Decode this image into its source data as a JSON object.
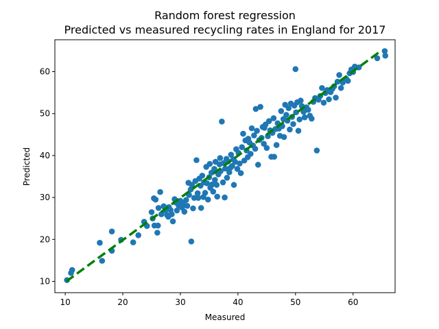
{
  "chart_data": {
    "type": "scatter",
    "title": "Random forest regression",
    "subtitle": "Predicted vs measured recycling rates in England for 2017",
    "xlabel": "Measured",
    "ylabel": "Predicted",
    "xlim": [
      8.2,
      67.3
    ],
    "ylim": [
      7.3,
      67.6
    ],
    "xticks": [
      10,
      20,
      30,
      40,
      50,
      60
    ],
    "yticks": [
      10,
      20,
      30,
      40,
      50,
      60
    ],
    "grid": false,
    "legend": "none",
    "colors": {
      "points": "#1f77b4",
      "fit_line": "#008000"
    },
    "fit_line": {
      "style": "dashed",
      "x": [
        10.2,
        64.5
      ],
      "y": [
        10.0,
        64.6
      ]
    },
    "points": [
      [
        10.3,
        10.3
      ],
      [
        11.0,
        12.0
      ],
      [
        11.2,
        12.7
      ],
      [
        16.0,
        19.2
      ],
      [
        16.4,
        14.9
      ],
      [
        18.1,
        17.3
      ],
      [
        18.1,
        21.9
      ],
      [
        19.7,
        19.9
      ],
      [
        21.8,
        19.3
      ],
      [
        22.7,
        21.0
      ],
      [
        23.7,
        24.2
      ],
      [
        24.2,
        23.2
      ],
      [
        25.0,
        26.5
      ],
      [
        25.2,
        25.0
      ],
      [
        25.4,
        29.8
      ],
      [
        25.5,
        23.3
      ],
      [
        25.7,
        29.5
      ],
      [
        26.0,
        21.6
      ],
      [
        26.1,
        23.3
      ],
      [
        26.2,
        27.5
      ],
      [
        26.5,
        31.3
      ],
      [
        26.7,
        26.0
      ],
      [
        27.1,
        27.9
      ],
      [
        27.4,
        26.9
      ],
      [
        27.7,
        25.8
      ],
      [
        27.9,
        25.4
      ],
      [
        28.0,
        27.7
      ],
      [
        28.3,
        27.0
      ],
      [
        28.5,
        26.0
      ],
      [
        28.7,
        24.3
      ],
      [
        29.0,
        29.6
      ],
      [
        29.2,
        28.8
      ],
      [
        29.4,
        26.9
      ],
      [
        29.7,
        28.1
      ],
      [
        30.0,
        29.2
      ],
      [
        30.3,
        27.6
      ],
      [
        30.5,
        28.6
      ],
      [
        30.7,
        26.6
      ],
      [
        31.0,
        29.4
      ],
      [
        31.2,
        28.0
      ],
      [
        31.4,
        33.5
      ],
      [
        31.5,
        30.6
      ],
      [
        31.8,
        31.9
      ],
      [
        31.9,
        19.5
      ],
      [
        32.0,
        33.0
      ],
      [
        32.2,
        27.4
      ],
      [
        32.4,
        29.9
      ],
      [
        32.6,
        33.9
      ],
      [
        32.8,
        38.9
      ],
      [
        33.0,
        31.0
      ],
      [
        33.1,
        29.9
      ],
      [
        33.3,
        34.5
      ],
      [
        33.5,
        32.8
      ],
      [
        33.6,
        27.5
      ],
      [
        33.8,
        35.2
      ],
      [
        34.0,
        30.1
      ],
      [
        34.1,
        33.6
      ],
      [
        34.3,
        31.1
      ],
      [
        34.5,
        37.3
      ],
      [
        34.6,
        33.4
      ],
      [
        34.8,
        29.5
      ],
      [
        35.0,
        34.8
      ],
      [
        35.1,
        38.0
      ],
      [
        35.2,
        32.3
      ],
      [
        35.4,
        35.9
      ],
      [
        35.5,
        33.1
      ],
      [
        35.7,
        31.4
      ],
      [
        35.9,
        36.8
      ],
      [
        36.0,
        34.2
      ],
      [
        36.1,
        38.5
      ],
      [
        36.3,
        33.0
      ],
      [
        36.4,
        30.2
      ],
      [
        36.6,
        35.5
      ],
      [
        36.8,
        37.9
      ],
      [
        36.9,
        39.4
      ],
      [
        37.0,
        36.3
      ],
      [
        37.2,
        48.1
      ],
      [
        37.4,
        33.6
      ],
      [
        37.5,
        38.2
      ],
      [
        37.7,
        30.0
      ],
      [
        37.8,
        36.9
      ],
      [
        38.0,
        39.2
      ],
      [
        38.1,
        34.7
      ],
      [
        38.3,
        38.6
      ],
      [
        38.5,
        36.0
      ],
      [
        38.7,
        37.1
      ],
      [
        38.8,
        40.2
      ],
      [
        39.0,
        37.5
      ],
      [
        39.2,
        39.1
      ],
      [
        39.3,
        33.0
      ],
      [
        39.5,
        38.5
      ],
      [
        39.7,
        41.5
      ],
      [
        39.9,
        36.8
      ],
      [
        40.1,
        40.6
      ],
      [
        40.3,
        38.1
      ],
      [
        40.5,
        35.8
      ],
      [
        40.7,
        42.0
      ],
      [
        40.9,
        45.2
      ],
      [
        41.1,
        38.8
      ],
      [
        41.3,
        43.6
      ],
      [
        41.5,
        41.2
      ],
      [
        41.7,
        39.6
      ],
      [
        41.8,
        44.0
      ],
      [
        42.0,
        43.1
      ],
      [
        42.2,
        40.4
      ],
      [
        42.4,
        46.5
      ],
      [
        42.6,
        42.4
      ],
      [
        42.8,
        44.8
      ],
      [
        43.0,
        41.6
      ],
      [
        43.1,
        51.1
      ],
      [
        43.3,
        45.9
      ],
      [
        43.5,
        37.8
      ],
      [
        43.7,
        43.7
      ],
      [
        43.9,
        51.6
      ],
      [
        44.1,
        44.2
      ],
      [
        44.3,
        46.8
      ],
      [
        44.5,
        42.8
      ],
      [
        44.6,
        46.6
      ],
      [
        44.8,
        47.4
      ],
      [
        45.0,
        41.8
      ],
      [
        45.2,
        44.6
      ],
      [
        45.4,
        48.2
      ],
      [
        45.6,
        46.0
      ],
      [
        45.8,
        39.7
      ],
      [
        46.0,
        45.4
      ],
      [
        46.2,
        48.9
      ],
      [
        46.3,
        39.7
      ],
      [
        46.5,
        46.3
      ],
      [
        46.7,
        42.5
      ],
      [
        46.9,
        47.7
      ],
      [
        47.1,
        46.4
      ],
      [
        47.3,
        44.7
      ],
      [
        47.5,
        50.6
      ],
      [
        47.7,
        47.0
      ],
      [
        47.9,
        48.7
      ],
      [
        48.0,
        44.4
      ],
      [
        48.2,
        52.1
      ],
      [
        48.4,
        49.7
      ],
      [
        48.6,
        48.3
      ],
      [
        48.8,
        51.3
      ],
      [
        49.0,
        46.2
      ],
      [
        49.2,
        52.4
      ],
      [
        49.4,
        49.2
      ],
      [
        49.6,
        47.5
      ],
      [
        49.8,
        51.9
      ],
      [
        50.0,
        60.6
      ],
      [
        50.1,
        50.3
      ],
      [
        50.3,
        52.7
      ],
      [
        50.5,
        45.9
      ],
      [
        50.7,
        48.6
      ],
      [
        50.9,
        53.1
      ],
      [
        51.1,
        51.8
      ],
      [
        51.4,
        50.4
      ],
      [
        51.6,
        49.1
      ],
      [
        51.9,
        51.5
      ],
      [
        52.2,
        50.9
      ],
      [
        52.5,
        49.5
      ],
      [
        52.8,
        48.8
      ],
      [
        53.1,
        52.8
      ],
      [
        53.4,
        53.7
      ],
      [
        53.7,
        41.2
      ],
      [
        54.0,
        53.3
      ],
      [
        54.3,
        54.2
      ],
      [
        54.6,
        56.1
      ],
      [
        54.9,
        52.6
      ],
      [
        55.2,
        54.9
      ],
      [
        55.5,
        55.6
      ],
      [
        55.8,
        53.4
      ],
      [
        56.1,
        55.1
      ],
      [
        56.4,
        55.9
      ],
      [
        56.7,
        56.5
      ],
      [
        57.0,
        53.8
      ],
      [
        57.3,
        57.6
      ],
      [
        57.6,
        59.2
      ],
      [
        57.9,
        56.1
      ],
      [
        58.2,
        57.4
      ],
      [
        58.5,
        58.0
      ],
      [
        58.8,
        58.3
      ],
      [
        59.1,
        57.8
      ],
      [
        59.4,
        59.6
      ],
      [
        59.7,
        60.5
      ],
      [
        60.0,
        59.9
      ],
      [
        60.3,
        61.2
      ],
      [
        61.0,
        61.0
      ],
      [
        64.2,
        63.2
      ],
      [
        65.5,
        64.9
      ],
      [
        65.6,
        63.8
      ]
    ]
  }
}
